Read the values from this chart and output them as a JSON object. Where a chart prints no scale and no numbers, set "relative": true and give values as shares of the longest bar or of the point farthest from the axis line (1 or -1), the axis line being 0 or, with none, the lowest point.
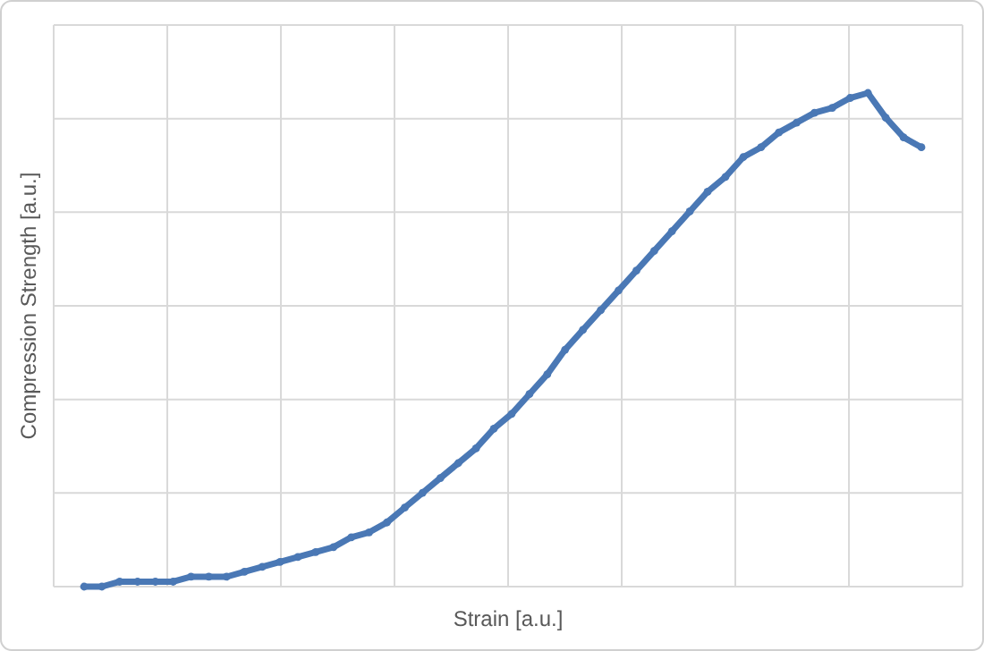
{
  "chart_data": {
    "type": "line",
    "relative": true,
    "xlabel": "Strain [a.u.]",
    "ylabel": "Compression Strength [a.u.]",
    "grid": true,
    "marker": "circle",
    "categories": [
      null,
      null,
      null,
      null,
      null,
      null,
      null,
      null,
      null,
      null,
      null,
      null,
      null,
      null,
      null,
      null,
      null,
      null,
      null,
      null,
      null,
      null,
      null,
      null,
      null,
      null,
      null,
      null,
      null,
      null,
      null,
      null,
      null,
      null,
      null,
      null,
      null,
      null,
      null,
      null,
      null,
      null,
      null,
      null,
      null,
      null,
      null,
      null
    ],
    "series": [
      {
        "color": "#4a78b5",
        "values": [
          0,
          0,
          0.01,
          0.01,
          0.01,
          0.01,
          0.02,
          0.02,
          0.02,
          0.03,
          0.04,
          0.05,
          0.06,
          0.07,
          0.08,
          0.1,
          0.11,
          0.13,
          0.16,
          0.19,
          0.22,
          0.25,
          0.28,
          0.32,
          0.35,
          0.39,
          0.43,
          0.48,
          0.52,
          0.56,
          0.6,
          0.64,
          0.68,
          0.72,
          0.76,
          0.8,
          0.83,
          0.87,
          0.89,
          0.92,
          0.94,
          0.96,
          0.97,
          0.99,
          1,
          0.95,
          0.91,
          0.89
        ]
      }
    ]
  }
}
